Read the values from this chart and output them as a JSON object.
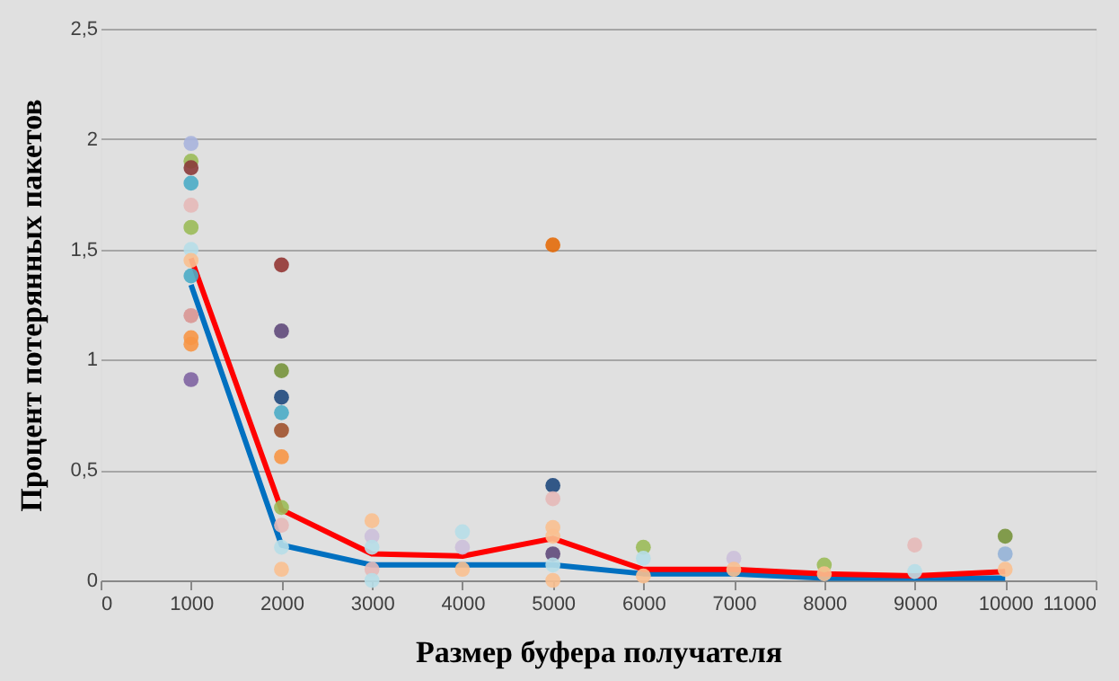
{
  "chart_data": {
    "type": "scatter",
    "xlabel": "Размер буфера получателя",
    "ylabel": "Процент потерянных пакетов",
    "x": [
      1000,
      2000,
      3000,
      4000,
      5000,
      6000,
      7000,
      8000,
      9000,
      10000
    ],
    "series": [
      {
        "marker": "circle",
        "x": [
          1000,
          1000,
          1000,
          1000,
          1000,
          1000,
          1000,
          1000,
          1000,
          1000,
          1000,
          1000,
          1000,
          2000,
          2000,
          2000,
          2000,
          2000,
          2000,
          2000,
          2000,
          2000,
          2000,
          2000,
          3000,
          3000,
          3000,
          3000,
          3000,
          4000,
          4000,
          4000,
          5000,
          5000,
          5000,
          5000,
          5000,
          5000,
          5000,
          5000,
          6000,
          6000,
          6000,
          7000,
          7000,
          8000,
          8000,
          9000,
          9000,
          10000,
          10000,
          10000
        ],
        "values": [
          1.98,
          1.9,
          1.87,
          1.8,
          1.7,
          1.6,
          1.5,
          1.45,
          1.38,
          1.2,
          1.1,
          1.07,
          0.91,
          1.43,
          1.13,
          0.95,
          0.83,
          0.76,
          0.68,
          0.56,
          0.33,
          0.25,
          0.15,
          0.05,
          0.27,
          0.2,
          0.15,
          0.05,
          0,
          0.22,
          0.15,
          0.05,
          1.52,
          0.43,
          0.37,
          0.24,
          0.2,
          0.12,
          0.07,
          0,
          0.15,
          0.1,
          0.02,
          0.1,
          0.05,
          0.07,
          0.03,
          0.16,
          0.04,
          0.2,
          0.12,
          0.05
        ],
        "colors": [
          "#a9b4dd",
          "#9bbb59",
          "#8b3a3a",
          "#4bacc6",
          "#e6b9b8",
          "#9bbb59",
          "#b7dee8",
          "#fac090",
          "#4bacc6",
          "#d99694",
          "#f79646",
          "#f79646",
          "#8064a2",
          "#943634",
          "#604a7b",
          "#77933c",
          "#1f497d",
          "#4bacc6",
          "#a0522d",
          "#f79646",
          "#9bbb59",
          "#e6b9b8",
          "#b7dee8",
          "#fac090",
          "#fac090",
          "#ccc0da",
          "#b7dee8",
          "#e6b9b8",
          "#b7dee8",
          "#b7dee8",
          "#ccc0da",
          "#fac090",
          "#e46c0a",
          "#1f497d",
          "#e6b9b8",
          "#fac090",
          "#fac090",
          "#604a7b",
          "#b7dee8",
          "#fac090",
          "#9bbb59",
          "#b7dee8",
          "#fac090",
          "#ccc0da",
          "#fac090",
          "#9bbb59",
          "#fac090",
          "#e6b9b8",
          "#b7dee8",
          "#77933c",
          "#95b3d7",
          "#fac090"
        ]
      },
      {
        "type": "line",
        "color": "#ff0000",
        "values": [
          1.46,
          0.32,
          0.12,
          0.11,
          0.19,
          0.05,
          0.05,
          0.03,
          0.02,
          0.04
        ]
      },
      {
        "type": "line",
        "color": "#0070c0",
        "values": [
          1.34,
          0.16,
          0.07,
          0.07,
          0.07,
          0.03,
          0.03,
          0.01,
          0.01,
          0.01
        ]
      }
    ],
    "xlim": [
      0,
      11000
    ],
    "xticks": [
      0,
      1000,
      2000,
      3000,
      4000,
      5000,
      6000,
      7000,
      8000,
      9000,
      10000,
      11000
    ],
    "ylim": [
      0,
      2.5
    ],
    "yticks": [
      0,
      {
        "value": 0.5,
        "label": "0,5"
      },
      1,
      {
        "value": 1.5,
        "label": "1,5"
      },
      2,
      {
        "value": 2.5,
        "label": "2,5"
      }
    ],
    "grid": "y",
    "marker": "none",
    "line_style": "solid"
  }
}
